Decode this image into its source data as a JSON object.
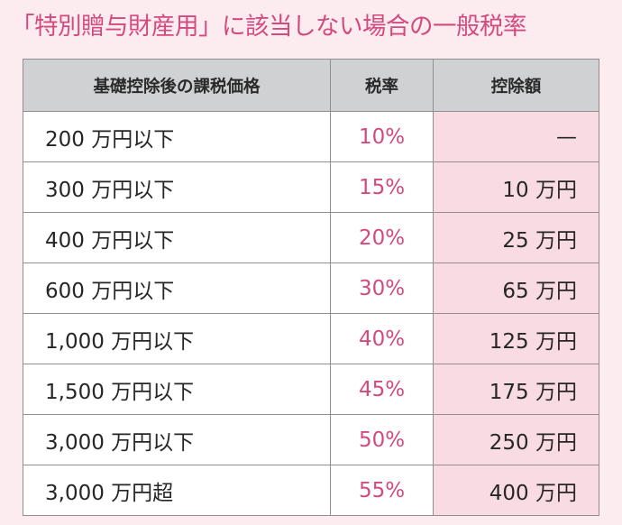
{
  "title": "「特別贈与財産用」に該当しない場合の一般税率",
  "table": {
    "headers": [
      "基礎控除後の課税価格",
      "税率",
      "控除額"
    ],
    "rows": [
      {
        "income": "200 万円以下",
        "rate": "10%",
        "deduction": "—"
      },
      {
        "income": "300 万円以下",
        "rate": "15%",
        "deduction": "10 万円"
      },
      {
        "income": "400 万円以下",
        "rate": "20%",
        "deduction": "25 万円"
      },
      {
        "income": "600 万円以下",
        "rate": "30%",
        "deduction": "65 万円"
      },
      {
        "income": "1,000 万円以下",
        "rate": "40%",
        "deduction": "125 万円"
      },
      {
        "income": "1,500 万円以下",
        "rate": "45%",
        "deduction": "175 万円"
      },
      {
        "income": "3,000 万円以下",
        "rate": "50%",
        "deduction": "250 万円"
      },
      {
        "income": "3,000 万円超",
        "rate": "55%",
        "deduction": "400 万円"
      }
    ]
  },
  "colors": {
    "accent": "#d34a7f",
    "background": "#fcecf0",
    "header_bg": "#cfd1d3",
    "deduction_bg": "#f9dce3",
    "border": "#8f8f8f"
  }
}
